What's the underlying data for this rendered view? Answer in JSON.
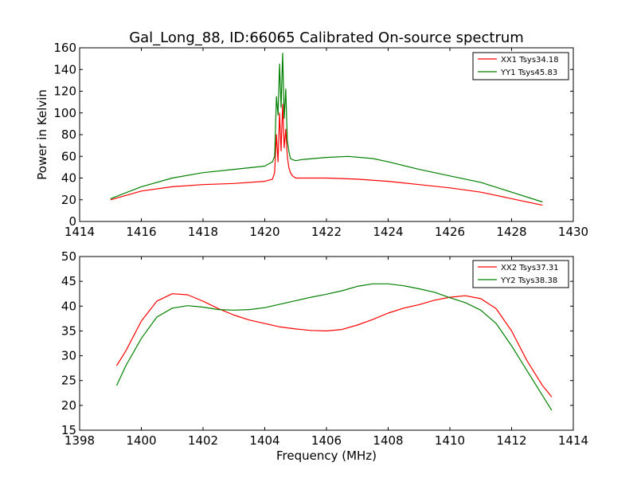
{
  "chart_data": [
    {
      "type": "line",
      "title": "Gal_Long_88, ID:66065 Calibrated On-source spectrum",
      "xlabel": "",
      "ylabel": "Power in Kelvin",
      "xlim": [
        1414,
        1430
      ],
      "ylim": [
        0,
        160
      ],
      "xticks": [
        1414,
        1416,
        1418,
        1420,
        1422,
        1424,
        1426,
        1428,
        1430
      ],
      "yticks": [
        0,
        20,
        40,
        60,
        80,
        100,
        120,
        140,
        160
      ],
      "legend_position": "top-right",
      "grid": false,
      "series": [
        {
          "name": "XX1 Tsys34.18",
          "color": "#ff0000",
          "x": [
            1415.0,
            1416.0,
            1417.0,
            1418.0,
            1419.0,
            1420.0,
            1420.25,
            1420.32,
            1420.38,
            1420.43,
            1420.48,
            1420.53,
            1420.58,
            1420.63,
            1420.68,
            1420.73,
            1420.78,
            1420.83,
            1420.9,
            1421.0,
            1421.2,
            1422.0,
            1423.0,
            1424.0,
            1425.0,
            1426.0,
            1427.0,
            1428.0,
            1429.0
          ],
          "y": [
            20,
            28,
            32,
            34,
            35,
            37,
            39,
            45,
            80,
            55,
            100,
            65,
            108,
            68,
            85,
            60,
            50,
            45,
            42,
            40,
            40,
            40,
            39,
            37,
            34,
            31,
            27,
            21,
            15
          ]
        },
        {
          "name": "YY1 Tsys45.83",
          "color": "#008000",
          "x": [
            1415.0,
            1416.0,
            1417.0,
            1418.0,
            1419.0,
            1420.0,
            1420.25,
            1420.32,
            1420.38,
            1420.43,
            1420.48,
            1420.53,
            1420.58,
            1420.63,
            1420.68,
            1420.73,
            1420.78,
            1420.83,
            1420.9,
            1421.0,
            1421.2,
            1422.0,
            1422.7,
            1423.5,
            1424.0,
            1425.0,
            1426.0,
            1427.0,
            1428.0,
            1429.0
          ],
          "y": [
            21,
            32,
            40,
            45,
            48,
            51,
            55,
            60,
            115,
            98,
            145,
            105,
            155,
            95,
            122,
            75,
            65,
            58,
            57,
            56,
            57,
            59,
            60,
            58,
            55,
            48,
            42,
            36,
            27,
            18
          ]
        }
      ]
    },
    {
      "type": "line",
      "title": "",
      "xlabel": "Frequency (MHz)",
      "ylabel": "",
      "xlim": [
        1398,
        1414
      ],
      "ylim": [
        15,
        50
      ],
      "xticks": [
        1398,
        1400,
        1402,
        1404,
        1406,
        1408,
        1410,
        1412,
        1414
      ],
      "yticks": [
        15,
        20,
        25,
        30,
        35,
        40,
        45,
        50
      ],
      "legend_position": "top-right",
      "grid": false,
      "series": [
        {
          "name": "XX2 Tsys37.31",
          "color": "#ff0000",
          "x": [
            1399.2,
            1399.5,
            1400.0,
            1400.5,
            1401.0,
            1401.5,
            1402.0,
            1402.5,
            1403.0,
            1403.5,
            1404.0,
            1404.5,
            1405.0,
            1405.5,
            1406.0,
            1406.5,
            1407.0,
            1407.5,
            1408.0,
            1408.5,
            1409.0,
            1409.5,
            1410.0,
            1410.5,
            1411.0,
            1411.5,
            1412.0,
            1412.5,
            1413.0,
            1413.3
          ],
          "y": [
            28,
            31,
            37,
            41,
            42.5,
            42.3,
            41,
            39.5,
            38.2,
            37.2,
            36.5,
            35.8,
            35.4,
            35.1,
            35.0,
            35.3,
            36.2,
            37.3,
            38.6,
            39.6,
            40.3,
            41.2,
            41.8,
            42.1,
            41.5,
            39.5,
            35.0,
            29.0,
            24.0,
            21.7
          ]
        },
        {
          "name": "YY2 Tsys38.38",
          "color": "#008000",
          "x": [
            1399.2,
            1399.5,
            1400.0,
            1400.5,
            1401.0,
            1401.5,
            1402.0,
            1402.5,
            1403.0,
            1403.5,
            1404.0,
            1404.5,
            1405.0,
            1405.5,
            1406.0,
            1406.5,
            1407.0,
            1407.5,
            1408.0,
            1408.5,
            1409.0,
            1409.5,
            1410.0,
            1410.5,
            1411.0,
            1411.5,
            1412.0,
            1412.5,
            1413.0,
            1413.3
          ],
          "y": [
            24,
            28,
            33.5,
            37.8,
            39.6,
            40.1,
            39.8,
            39.3,
            39.2,
            39.3,
            39.7,
            40.4,
            41.1,
            41.8,
            42.4,
            43.1,
            44.0,
            44.5,
            44.5,
            44.1,
            43.5,
            42.8,
            41.7,
            40.7,
            39.2,
            36.5,
            32.0,
            27.0,
            22.0,
            19.0
          ]
        }
      ]
    }
  ]
}
